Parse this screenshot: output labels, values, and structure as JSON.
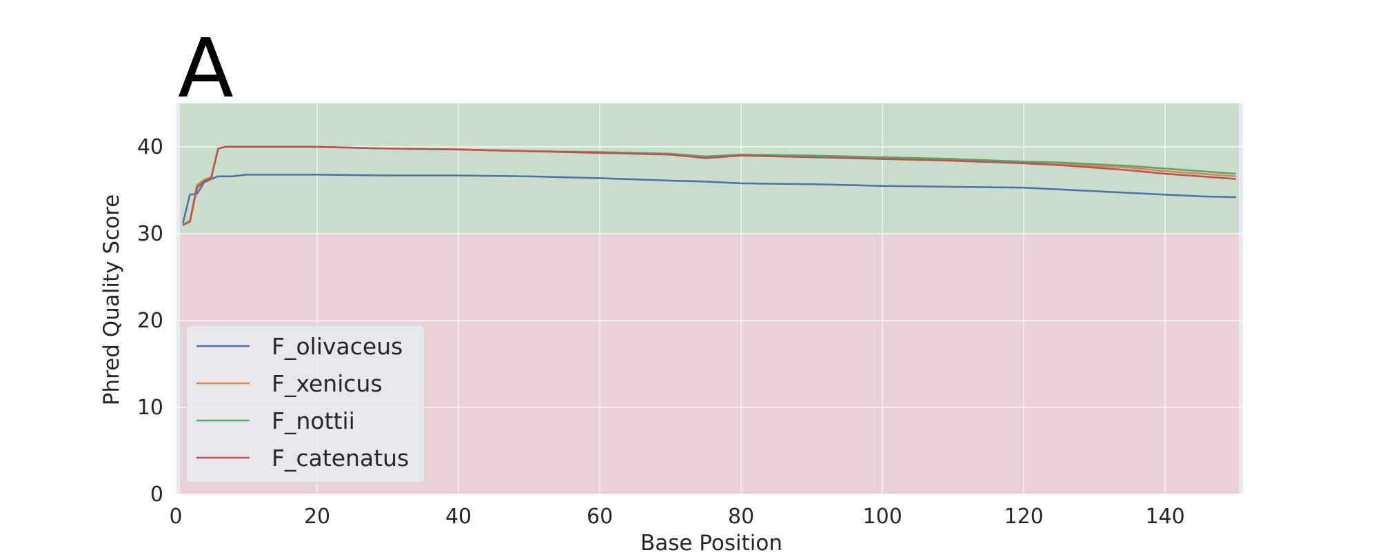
{
  "panel_label": "A",
  "chart_data": {
    "type": "line",
    "title": "",
    "xlabel": "Base Position",
    "ylabel": "Phred Quality Score",
    "xlim": [
      0,
      151
    ],
    "ylim": [
      0,
      45
    ],
    "xticks": [
      0,
      20,
      40,
      60,
      80,
      100,
      120,
      140
    ],
    "yticks": [
      0,
      10,
      20,
      30,
      40
    ],
    "grid": true,
    "legend_position": "lower-left",
    "background_color": "#eaeaf2",
    "grid_color": "#ffffff",
    "bands": [
      {
        "y_from": 30,
        "y_to": 45,
        "color": "#c9ddcb"
      },
      {
        "y_from": 0,
        "y_to": 30,
        "color": "#ead1d8"
      }
    ],
    "x": [
      1,
      2,
      3,
      4,
      5,
      6,
      7,
      8,
      9,
      10,
      15,
      20,
      30,
      40,
      50,
      60,
      70,
      75,
      80,
      90,
      100,
      110,
      120,
      125,
      130,
      135,
      140,
      145,
      150
    ],
    "series": [
      {
        "name": "F_olivaceus",
        "color": "#4c72b0",
        "values": [
          31.2,
          34.5,
          34.6,
          35.9,
          36.3,
          36.6,
          36.6,
          36.6,
          36.7,
          36.8,
          36.8,
          36.8,
          36.7,
          36.7,
          36.6,
          36.4,
          36.1,
          36.0,
          35.8,
          35.7,
          35.5,
          35.4,
          35.3,
          35.1,
          34.9,
          34.7,
          34.5,
          34.3,
          34.2
        ]
      },
      {
        "name": "F_xenicus",
        "color": "#dd8452",
        "values": [
          31.0,
          31.5,
          35.6,
          36.2,
          36.5,
          39.8,
          40.0,
          40.0,
          40.0,
          40.0,
          40.0,
          40.0,
          39.8,
          39.7,
          39.5,
          39.4,
          39.2,
          38.8,
          39.1,
          38.9,
          38.7,
          38.5,
          38.2,
          38.1,
          37.8,
          37.6,
          37.2,
          36.9,
          36.6
        ]
      },
      {
        "name": "F_nottii",
        "color": "#55a868",
        "values": [
          31.0,
          31.4,
          35.4,
          36.1,
          36.4,
          39.8,
          40.0,
          40.0,
          40.0,
          40.0,
          40.0,
          40.0,
          39.8,
          39.7,
          39.5,
          39.4,
          39.2,
          38.9,
          39.1,
          39.0,
          38.8,
          38.6,
          38.3,
          38.2,
          38.0,
          37.8,
          37.5,
          37.2,
          36.9
        ]
      },
      {
        "name": "F_catenatus",
        "color": "#c44e52",
        "values": [
          31.0,
          31.4,
          35.3,
          36.0,
          36.4,
          39.8,
          40.0,
          40.0,
          40.0,
          40.0,
          40.0,
          40.0,
          39.8,
          39.7,
          39.5,
          39.3,
          39.1,
          38.7,
          39.0,
          38.8,
          38.6,
          38.4,
          38.1,
          37.9,
          37.6,
          37.3,
          36.9,
          36.6,
          36.3
        ]
      }
    ]
  }
}
